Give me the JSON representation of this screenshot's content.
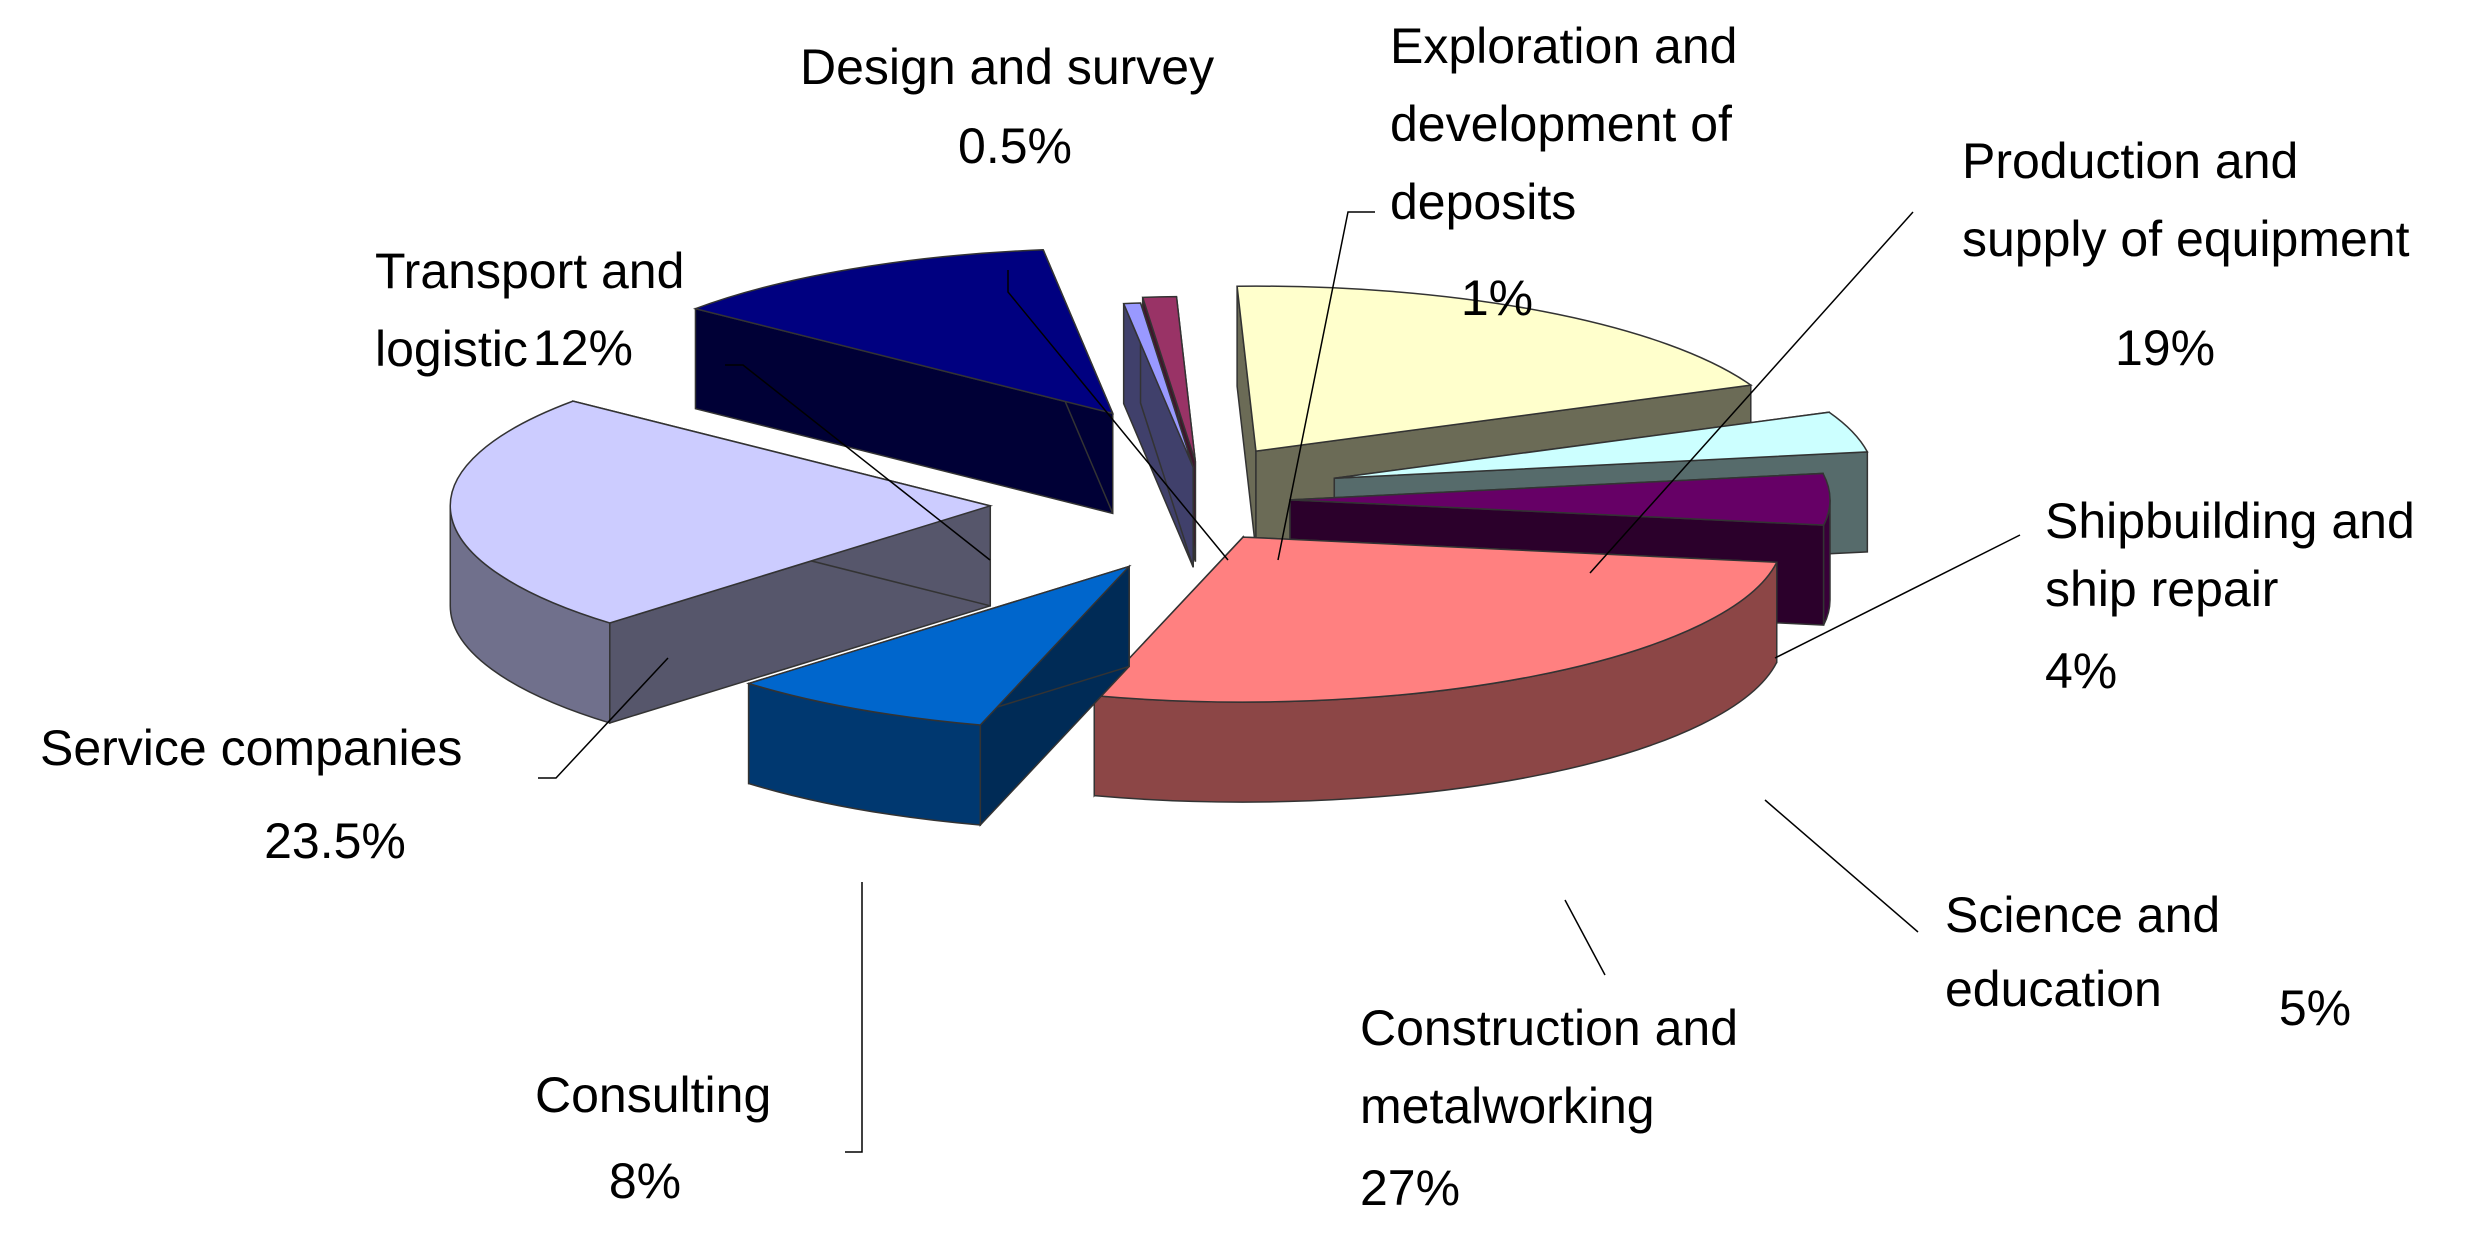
{
  "chart_data": {
    "type": "pie",
    "title": "",
    "style": "exploded-3d",
    "grid": false,
    "legend": "none",
    "slices": [
      {
        "label_lines": [
          "Production and",
          "supply of equipment"
        ],
        "value_label": "19%",
        "value": 19,
        "color": "#FFFFCC"
      },
      {
        "label_lines": [
          "Shipbuilding and",
          "ship repair"
        ],
        "value_label": "4%",
        "value": 4,
        "color": "#CCFFFF"
      },
      {
        "label_lines": [
          "Science and",
          "education"
        ],
        "value_label": "5%",
        "value": 5,
        "color": "#660066"
      },
      {
        "label_lines": [
          "Construction and",
          "metalworking"
        ],
        "value_label": "27%",
        "value": 27,
        "color": "#FF8080"
      },
      {
        "label_lines": [
          "Consulting"
        ],
        "value_label": "8%",
        "value": 8,
        "color": "#0066CC"
      },
      {
        "label_lines": [
          "Service companies"
        ],
        "value_label": "23.5%",
        "value": 23.5,
        "color": "#CCCCFF"
      },
      {
        "label_lines": [
          "Transport and",
          "logistic"
        ],
        "value_label": "12%",
        "value": 12,
        "color": "#000080"
      },
      {
        "label_lines": [
          "Design and survey"
        ],
        "value_label": "0.5%",
        "value": 0.5,
        "color": "#9999FF"
      },
      {
        "label_lines": [
          "Exploration and",
          "development of",
          "deposits"
        ],
        "value_label": "1%",
        "value": 1,
        "color": "#993366"
      }
    ]
  }
}
